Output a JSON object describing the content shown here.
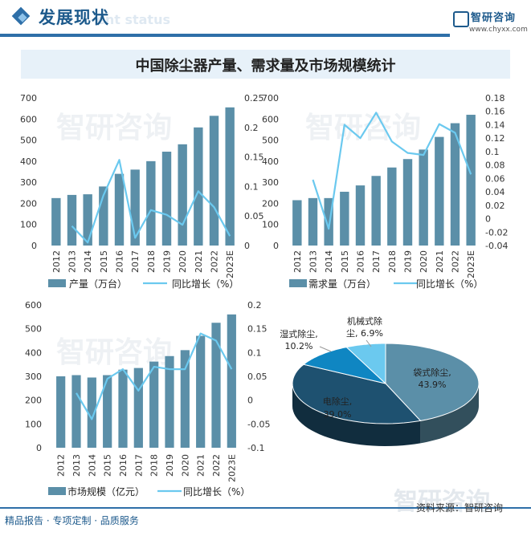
{
  "header": {
    "title": "发展现状",
    "watermark": "ent status",
    "brand_name": "智研咨询",
    "brand_url": "www.chyxx.com",
    "accent_color": "#2e6fa8"
  },
  "main_title": "中国除尘器产量、需求量及市场规模统计",
  "colors": {
    "bar": "#5b8fa8",
    "line": "#6bc9ef",
    "pie": [
      "#5b8fa8",
      "#1e5170",
      "#0f86c2",
      "#6bc9ef"
    ]
  },
  "chart_data": [
    {
      "type": "bar",
      "categories": [
        "2012",
        "2013",
        "2014",
        "2015",
        "2016",
        "2017",
        "2018",
        "2019",
        "2020",
        "2021",
        "2022",
        "2023E"
      ],
      "series": [
        {
          "name": "产量（万台）",
          "type": "bar",
          "axis": "left",
          "values": [
            225,
            240,
            243,
            280,
            340,
            360,
            400,
            445,
            480,
            560,
            615,
            655
          ]
        },
        {
          "name": "同比增长（%）",
          "type": "line",
          "axis": "right",
          "values": [
            null,
            0.033,
            0.005,
            0.085,
            0.145,
            0.013,
            0.06,
            0.052,
            0.035,
            0.092,
            0.065,
            0.016
          ]
        }
      ],
      "left_ticks": [
        "0",
        "100",
        "200",
        "300",
        "400",
        "500",
        "600",
        "700"
      ],
      "right_ticks": [
        "0",
        "0.05",
        "0.1",
        "0.15",
        "0.2",
        "0.25"
      ],
      "ylim": [
        0,
        700
      ],
      "y2lim": [
        0,
        0.25
      ]
    },
    {
      "type": "bar",
      "categories": [
        "2012",
        "2013",
        "2014",
        "2015",
        "2016",
        "2017",
        "2018",
        "2019",
        "2020",
        "2021",
        "2022",
        "2023E"
      ],
      "series": [
        {
          "name": "需求量（万台）",
          "type": "bar",
          "axis": "left",
          "values": [
            215,
            225,
            225,
            255,
            285,
            330,
            370,
            410,
            455,
            515,
            580,
            620
          ]
        },
        {
          "name": "同比增长（%）",
          "type": "line",
          "axis": "right",
          "values": [
            null,
            0.058,
            -0.015,
            0.14,
            0.12,
            0.158,
            0.115,
            0.098,
            0.095,
            0.141,
            0.128,
            0.066
          ]
        }
      ],
      "left_ticks": [
        "0",
        "100",
        "200",
        "300",
        "400",
        "500",
        "600",
        "700"
      ],
      "right_ticks": [
        "-0.04",
        "-0.02",
        "0",
        "0.02",
        "0.04",
        "0.06",
        "0.08",
        "0.1",
        "0.12",
        "0.14",
        "0.16",
        "0.18"
      ],
      "ylim": [
        0,
        700
      ],
      "y2lim": [
        -0.04,
        0.18
      ]
    },
    {
      "type": "bar",
      "categories": [
        "2012",
        "2013",
        "2014",
        "2015",
        "2016",
        "2017",
        "2018",
        "2019",
        "2020",
        "2021",
        "2022",
        "2023E"
      ],
      "series": [
        {
          "name": "市场规模（亿元）",
          "type": "bar",
          "axis": "left",
          "values": [
            300,
            305,
            295,
            305,
            328,
            335,
            362,
            385,
            410,
            470,
            525,
            560
          ]
        },
        {
          "name": "同比增长（%）",
          "type": "line",
          "axis": "right",
          "values": [
            null,
            0.015,
            -0.04,
            0.045,
            0.065,
            0.02,
            0.07,
            0.065,
            0.065,
            0.14,
            0.125,
            0.065
          ]
        }
      ],
      "left_ticks": [
        "0",
        "100",
        "200",
        "300",
        "400",
        "500",
        "600"
      ],
      "right_ticks": [
        "-0.1",
        "-0.05",
        "0",
        "0.05",
        "0.1",
        "0.15",
        "0.2"
      ],
      "ylim": [
        0,
        600
      ],
      "y2lim": [
        -0.1,
        0.2
      ]
    },
    {
      "type": "pie",
      "slices": [
        {
          "label": "袋式除尘,",
          "value_label": "43.9%",
          "value": 43.9
        },
        {
          "label": "电除尘,",
          "value_label": "39.0%",
          "value": 39.0
        },
        {
          "label": "湿式除尘,",
          "value_label": "10.2%",
          "value": 10.2
        },
        {
          "label": "机械式除\n尘,",
          "value_label": "6.9%",
          "value": 6.9
        }
      ]
    }
  ],
  "pie_labels": {
    "s0_line1": "袋式除尘,",
    "s0_line2": "43.9%",
    "s1_line1": "电除尘,",
    "s1_line2": "39.0%",
    "s2_line1": "湿式除尘,",
    "s2_line2": "10.2%",
    "s3_line1": "机械式除",
    "s3_line2": "尘, 6.9%"
  },
  "watermark_text": "智研咨询",
  "footer": {
    "left": "精品报告 · 专项定制 · 品质服务",
    "right": "资料来源：智研咨询"
  }
}
